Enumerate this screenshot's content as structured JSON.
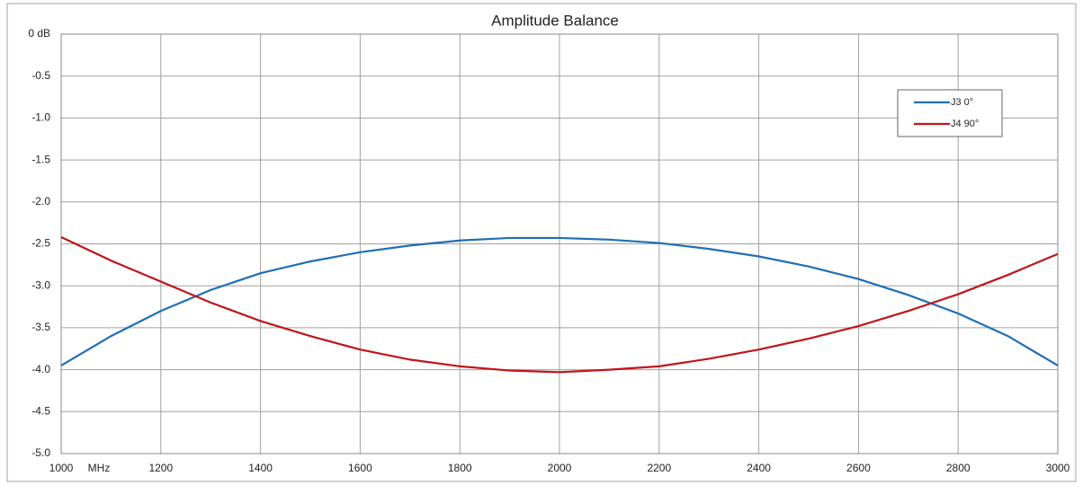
{
  "chart_data": {
    "type": "line",
    "title": "Amplitude Balance",
    "x_label": "MHz",
    "x": [
      1000,
      1100,
      1200,
      1300,
      1400,
      1500,
      1600,
      1700,
      1800,
      1900,
      2000,
      2100,
      2200,
      2300,
      2400,
      2500,
      2600,
      2700,
      2800,
      2900,
      3000
    ],
    "series": [
      {
        "name": "J3 0°",
        "color": "#1f6fb4",
        "values": [
          -3.95,
          -3.6,
          -3.3,
          -3.05,
          -2.85,
          -2.71,
          -2.6,
          -2.52,
          -2.46,
          -2.43,
          -2.43,
          -2.45,
          -2.49,
          -2.56,
          -2.65,
          -2.77,
          -2.92,
          -3.11,
          -3.33,
          -3.6,
          -3.95
        ]
      },
      {
        "name": "J4 90°",
        "color": "#c0141a",
        "values": [
          -2.42,
          -2.7,
          -2.95,
          -3.2,
          -3.42,
          -3.6,
          -3.76,
          -3.88,
          -3.96,
          -4.01,
          -4.03,
          -4.0,
          -3.96,
          -3.87,
          -3.76,
          -3.63,
          -3.48,
          -3.3,
          -3.1,
          -2.87,
          -2.62
        ]
      }
    ],
    "xlim": [
      1000,
      3000
    ],
    "xticks": [
      1000,
      1200,
      1400,
      1600,
      1800,
      2000,
      2200,
      2400,
      2600,
      2800,
      3000
    ],
    "ylim": [
      -5,
      0
    ],
    "yticks": [
      {
        "value": 0,
        "label": "0 dB"
      },
      -0.5,
      {
        "value": -1,
        "label": "-1.0"
      },
      -1.5,
      {
        "value": -2,
        "label": "-2.0"
      },
      -2.5,
      {
        "value": -3,
        "label": "-3.0"
      },
      -3.5,
      {
        "value": -4,
        "label": "-4.0"
      },
      -4.5,
      {
        "value": -5,
        "label": "-5.0"
      }
    ],
    "grid": true,
    "legend": "upper right"
  }
}
